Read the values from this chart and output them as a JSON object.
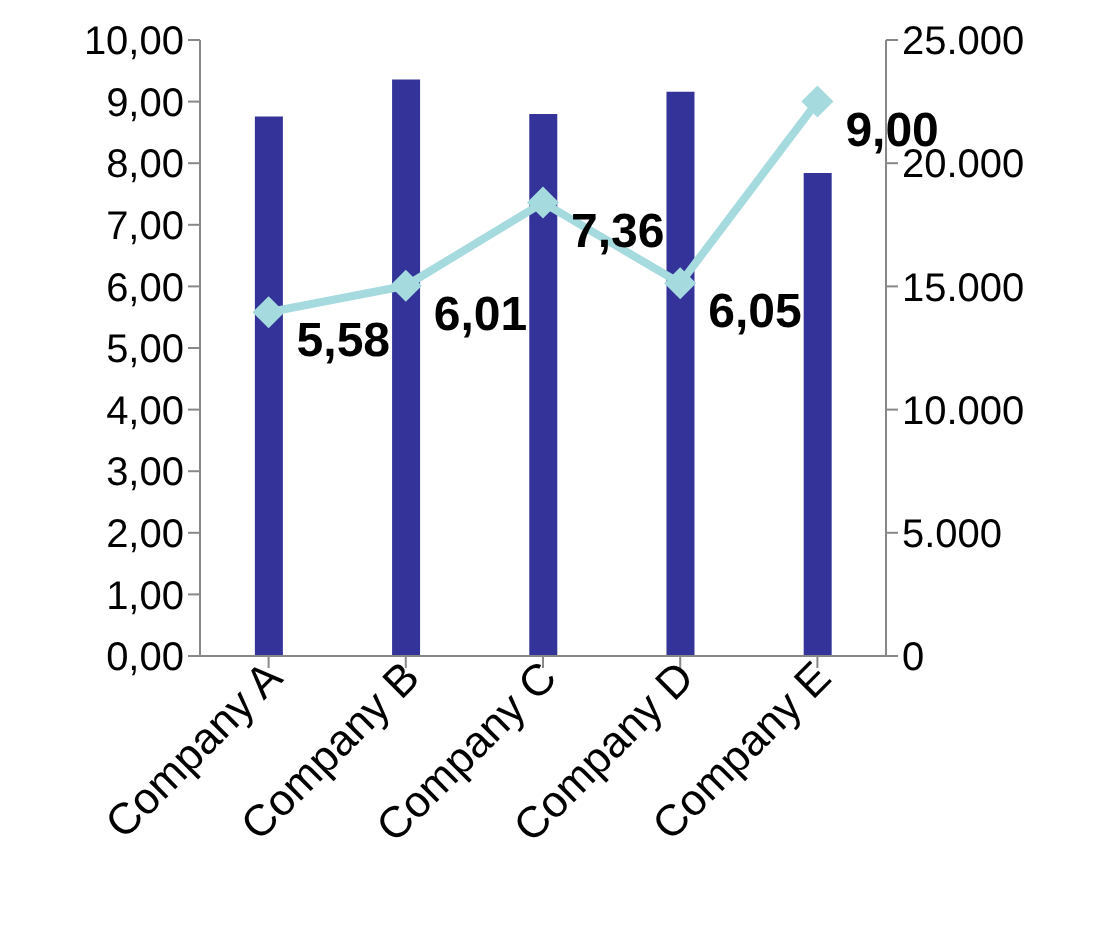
{
  "chart_data": {
    "type": "bar",
    "categories": [
      "Company A",
      "Company B",
      "Company C",
      "Company D",
      "Company E"
    ],
    "series": [
      {
        "axis": "y2",
        "color": "#333399",
        "values": [
          21900,
          23400,
          22000,
          22900,
          19600
        ]
      },
      {
        "type": "line",
        "axis": "y",
        "color": "#a5dadf",
        "marker": "diamond",
        "values": [
          5.58,
          6.01,
          7.36,
          6.05,
          9.0
        ],
        "value_labels": [
          "5,58",
          "6,01",
          "7,36",
          "6,05",
          "9,00"
        ]
      }
    ],
    "ylim": [
      0,
      10
    ],
    "yticks": [
      {
        "value": 0,
        "label": "0,00"
      },
      {
        "value": 1,
        "label": "1,00"
      },
      {
        "value": 2,
        "label": "2,00"
      },
      {
        "value": 3,
        "label": "3,00"
      },
      {
        "value": 4,
        "label": "4,00"
      },
      {
        "value": 5,
        "label": "5,00"
      },
      {
        "value": 6,
        "label": "6,00"
      },
      {
        "value": 7,
        "label": "7,00"
      },
      {
        "value": 8,
        "label": "8,00"
      },
      {
        "value": 9,
        "label": "9,00"
      },
      {
        "value": 10,
        "label": "10,00"
      }
    ],
    "y2lim": [
      0,
      25000
    ],
    "y2ticks": [
      0,
      {
        "value": 5000,
        "label": "5.000"
      },
      {
        "value": 10000,
        "label": "10.000"
      },
      {
        "value": 15000,
        "label": "15.000"
      },
      {
        "value": 20000,
        "label": "20.000"
      },
      {
        "value": 25000,
        "label": "25.000"
      }
    ],
    "grid": false,
    "legend": false
  }
}
